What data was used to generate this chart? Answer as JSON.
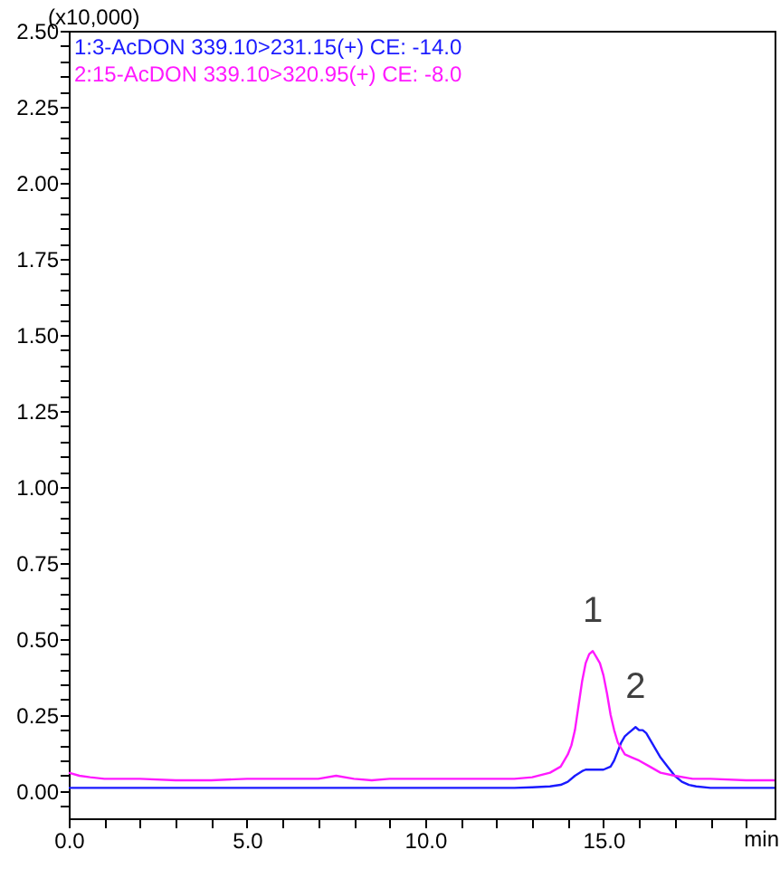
{
  "chart_data": {
    "type": "line",
    "ylabel": "(x10,000)",
    "xlabel": "min",
    "xlim": [
      0,
      19.8
    ],
    "ylim": [
      -0.09,
      2.5
    ],
    "xticks": [
      {
        "value": 0,
        "label": "0.0"
      },
      {
        "value": 1,
        "label": null
      },
      {
        "value": 2,
        "label": null
      },
      {
        "value": 3,
        "label": null
      },
      {
        "value": 4,
        "label": null
      },
      {
        "value": 5,
        "label": "5.0"
      },
      {
        "value": 6,
        "label": null
      },
      {
        "value": 7,
        "label": null
      },
      {
        "value": 8,
        "label": null
      },
      {
        "value": 9,
        "label": null
      },
      {
        "value": 10,
        "label": "10.0"
      },
      {
        "value": 11,
        "label": null
      },
      {
        "value": 12,
        "label": null
      },
      {
        "value": 13,
        "label": null
      },
      {
        "value": 14,
        "label": null
      },
      {
        "value": 15,
        "label": "15.0"
      },
      {
        "value": 16,
        "label": null
      },
      {
        "value": 17,
        "label": null
      },
      {
        "value": 18,
        "label": null
      },
      {
        "value": 19,
        "label": null
      }
    ],
    "yticks": [
      {
        "value": -0.05,
        "label": null
      },
      {
        "value": 0,
        "label": "0.00"
      },
      {
        "value": 0.05,
        "label": null
      },
      {
        "value": 0.1,
        "label": null
      },
      {
        "value": 0.15,
        "label": null
      },
      {
        "value": 0.2,
        "label": null
      },
      {
        "value": 0.25,
        "label": "0.25"
      },
      {
        "value": 0.3,
        "label": null
      },
      {
        "value": 0.35,
        "label": null
      },
      {
        "value": 0.4,
        "label": null
      },
      {
        "value": 0.45,
        "label": null
      },
      {
        "value": 0.5,
        "label": "0.50"
      },
      {
        "value": 0.55,
        "label": null
      },
      {
        "value": 0.6,
        "label": null
      },
      {
        "value": 0.65,
        "label": null
      },
      {
        "value": 0.7,
        "label": null
      },
      {
        "value": 0.75,
        "label": "0.75"
      },
      {
        "value": 0.8,
        "label": null
      },
      {
        "value": 0.85,
        "label": null
      },
      {
        "value": 0.9,
        "label": null
      },
      {
        "value": 0.95,
        "label": null
      },
      {
        "value": 1.0,
        "label": "1.00"
      },
      {
        "value": 1.05,
        "label": null
      },
      {
        "value": 1.1,
        "label": null
      },
      {
        "value": 1.15,
        "label": null
      },
      {
        "value": 1.2,
        "label": null
      },
      {
        "value": 1.25,
        "label": "1.25"
      },
      {
        "value": 1.3,
        "label": null
      },
      {
        "value": 1.35,
        "label": null
      },
      {
        "value": 1.4,
        "label": null
      },
      {
        "value": 1.45,
        "label": null
      },
      {
        "value": 1.5,
        "label": "1.50"
      },
      {
        "value": 1.55,
        "label": null
      },
      {
        "value": 1.6,
        "label": null
      },
      {
        "value": 1.65,
        "label": null
      },
      {
        "value": 1.7,
        "label": null
      },
      {
        "value": 1.75,
        "label": "1.75"
      },
      {
        "value": 1.8,
        "label": null
      },
      {
        "value": 1.85,
        "label": null
      },
      {
        "value": 1.9,
        "label": null
      },
      {
        "value": 1.95,
        "label": null
      },
      {
        "value": 2.0,
        "label": "2.00"
      },
      {
        "value": 2.05,
        "label": null
      },
      {
        "value": 2.1,
        "label": null
      },
      {
        "value": 2.15,
        "label": null
      },
      {
        "value": 2.2,
        "label": null
      },
      {
        "value": 2.25,
        "label": "2.25"
      },
      {
        "value": 2.3,
        "label": null
      },
      {
        "value": 2.35,
        "label": null
      },
      {
        "value": 2.4,
        "label": null
      },
      {
        "value": 2.45,
        "label": null
      },
      {
        "value": 2.5,
        "label": "2.50"
      }
    ],
    "grid": false,
    "legend": "top left",
    "marker": "none",
    "line_style": "solid",
    "series": [
      {
        "name": "1:3-AcDON 339.10>231.15(+) CE: -14.0",
        "color": "#1a1aff",
        "x": [
          0,
          1,
          2,
          3,
          4,
          5,
          6,
          7,
          8,
          9,
          10,
          11,
          12,
          12.5,
          13,
          13.5,
          13.8,
          14.0,
          14.2,
          14.4,
          14.5,
          14.7,
          14.8,
          15.0,
          15.2,
          15.3,
          15.4,
          15.5,
          15.6,
          15.7,
          15.8,
          15.9,
          16.0,
          16.1,
          16.2,
          16.3,
          16.4,
          16.5,
          16.6,
          16.8,
          17.0,
          17.2,
          17.4,
          17.6,
          18.0,
          18.5,
          19.0,
          19.8
        ],
        "values": [
          0.01,
          0.01,
          0.01,
          0.01,
          0.01,
          0.01,
          0.01,
          0.01,
          0.01,
          0.01,
          0.01,
          0.01,
          0.01,
          0.01,
          0.012,
          0.015,
          0.02,
          0.03,
          0.05,
          0.065,
          0.07,
          0.07,
          0.07,
          0.07,
          0.08,
          0.1,
          0.13,
          0.16,
          0.18,
          0.19,
          0.2,
          0.21,
          0.2,
          0.2,
          0.19,
          0.17,
          0.15,
          0.13,
          0.11,
          0.08,
          0.05,
          0.03,
          0.02,
          0.015,
          0.01,
          0.01,
          0.01,
          0.01
        ]
      },
      {
        "name": "2:15-AcDON 339.10>320.95(+) CE: -8.0",
        "color": "#ff19ff",
        "x": [
          0,
          0.3,
          0.6,
          1,
          2,
          3,
          4,
          5,
          6,
          7,
          7.5,
          8,
          8.5,
          9,
          10,
          11,
          12,
          12.5,
          13,
          13.5,
          13.8,
          14.0,
          14.1,
          14.2,
          14.3,
          14.4,
          14.5,
          14.6,
          14.7,
          14.8,
          14.9,
          15.0,
          15.1,
          15.2,
          15.3,
          15.4,
          15.5,
          15.6,
          15.8,
          16.0,
          16.3,
          16.6,
          17.0,
          17.5,
          18,
          19,
          19.8
        ],
        "values": [
          0.06,
          0.05,
          0.045,
          0.04,
          0.04,
          0.035,
          0.035,
          0.04,
          0.04,
          0.04,
          0.05,
          0.04,
          0.035,
          0.04,
          0.04,
          0.04,
          0.04,
          0.04,
          0.045,
          0.06,
          0.08,
          0.12,
          0.15,
          0.2,
          0.28,
          0.36,
          0.42,
          0.45,
          0.46,
          0.44,
          0.42,
          0.38,
          0.32,
          0.25,
          0.2,
          0.16,
          0.14,
          0.12,
          0.11,
          0.1,
          0.08,
          0.06,
          0.05,
          0.04,
          0.04,
          0.035,
          0.035
        ]
      }
    ],
    "annotations": [
      {
        "text": "1",
        "x": 14.7,
        "y": 0.46
      },
      {
        "text": "2",
        "x": 15.9,
        "y": 0.21
      }
    ]
  }
}
